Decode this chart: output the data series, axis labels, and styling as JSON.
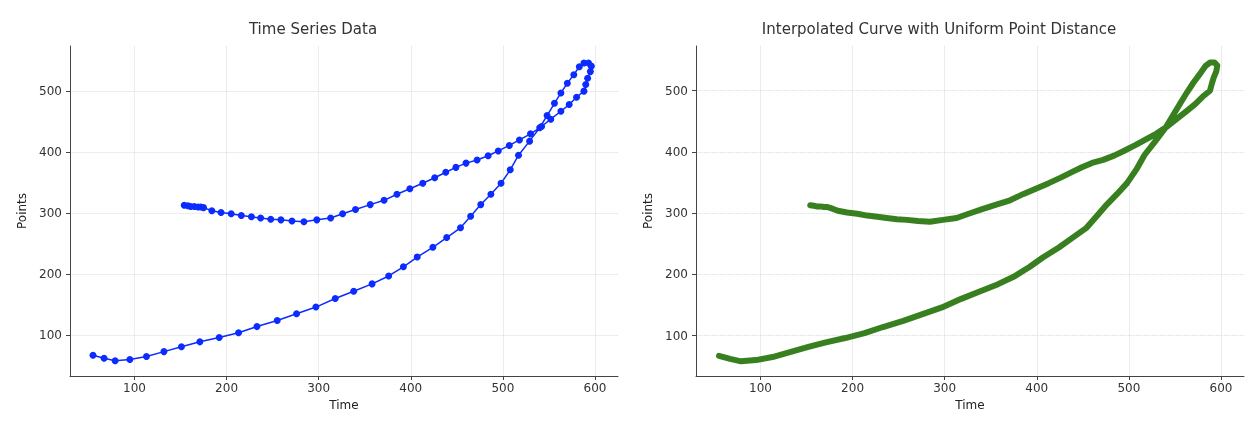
{
  "chart_data": [
    {
      "type": "line",
      "title": "Time Series Data",
      "xlabel": "Time",
      "ylabel": "Points",
      "marker": "circle",
      "line_style": "solid",
      "grid": true,
      "xlim": [
        30,
        625
      ],
      "ylim": [
        33,
        574
      ],
      "xticks": [
        100,
        200,
        300,
        400,
        500,
        600
      ],
      "yticks": [
        100,
        200,
        300,
        400,
        500
      ],
      "series": [
        {
          "color": "#0b2bff",
          "x": [
            55,
            67,
            79,
            95,
            113,
            132,
            151,
            171,
            192,
            213,
            233,
            255,
            276,
            297,
            318,
            338,
            358,
            376,
            392,
            407,
            424,
            439,
            454,
            465,
            476,
            487,
            498,
            508,
            517,
            529,
            540,
            548,
            556,
            563,
            570,
            577,
            583,
            588,
            593,
            596,
            595,
            592,
            590,
            588,
            580,
            572,
            563,
            552,
            542,
            530,
            518,
            507,
            495,
            484,
            472,
            460,
            449,
            438,
            426,
            413,
            399,
            385,
            371,
            356,
            340,
            326,
            313,
            298,
            284,
            271,
            259,
            248,
            237,
            227,
            216,
            205,
            194,
            184,
            175,
            172,
            169,
            165,
            161,
            158,
            154
          ],
          "values": [
            67,
            62,
            58,
            60,
            65,
            73,
            81,
            89,
            96,
            104,
            114,
            124,
            135,
            146,
            160,
            172,
            184,
            197,
            212,
            228,
            244,
            260,
            276,
            295,
            314,
            331,
            349,
            371,
            395,
            418,
            440,
            460,
            480,
            497,
            513,
            527,
            540,
            546,
            546,
            541,
            532,
            521,
            511,
            500,
            490,
            478,
            467,
            454,
            442,
            430,
            420,
            411,
            402,
            394,
            387,
            382,
            375,
            367,
            358,
            349,
            340,
            331,
            321,
            314,
            306,
            299,
            292,
            289,
            286,
            287,
            289,
            290,
            292,
            294,
            296,
            299,
            301,
            304,
            309,
            310,
            310,
            311,
            311,
            312,
            313
          ]
        }
      ]
    },
    {
      "type": "line",
      "title": "Interpolated Curve with Uniform Point Distance",
      "xlabel": "Time",
      "ylabel": "Points",
      "line_style": "solid",
      "grid": true,
      "xlim": [
        30,
        625
      ],
      "ylim": [
        34,
        573
      ],
      "xticks": [
        100,
        200,
        300,
        400,
        500,
        600
      ],
      "yticks": [
        100,
        200,
        300,
        400,
        500
      ],
      "series": [
        {
          "color": "#38801f",
          "x": [
            55,
            67,
            79,
            95,
            113,
            132,
            151,
            171,
            192,
            213,
            233,
            255,
            276,
            297,
            318,
            338,
            358,
            376,
            392,
            407,
            424,
            439,
            454,
            465,
            476,
            487,
            498,
            508,
            517,
            529,
            540,
            548,
            556,
            563,
            570,
            577,
            583,
            588,
            593,
            596,
            595,
            592,
            590,
            588,
            580,
            572,
            563,
            552,
            542,
            530,
            518,
            507,
            495,
            484,
            472,
            460,
            449,
            438,
            426,
            413,
            399,
            385,
            371,
            356,
            340,
            326,
            313,
            298,
            284,
            271,
            259,
            248,
            237,
            227,
            216,
            205,
            194,
            184,
            175,
            172,
            169,
            165,
            161,
            158,
            154
          ],
          "values": [
            67,
            62,
            58,
            60,
            65,
            73,
            81,
            89,
            96,
            104,
            114,
            124,
            135,
            146,
            160,
            172,
            184,
            197,
            212,
            228,
            244,
            260,
            276,
            295,
            314,
            331,
            349,
            371,
            395,
            418,
            440,
            460,
            480,
            497,
            513,
            527,
            540,
            546,
            546,
            541,
            532,
            521,
            511,
            500,
            490,
            478,
            467,
            454,
            442,
            430,
            420,
            411,
            402,
            394,
            387,
            382,
            375,
            367,
            358,
            349,
            340,
            331,
            321,
            314,
            306,
            299,
            292,
            289,
            286,
            287,
            289,
            290,
            292,
            294,
            296,
            299,
            301,
            304,
            309,
            310,
            310,
            311,
            311,
            312,
            313
          ]
        }
      ]
    }
  ]
}
